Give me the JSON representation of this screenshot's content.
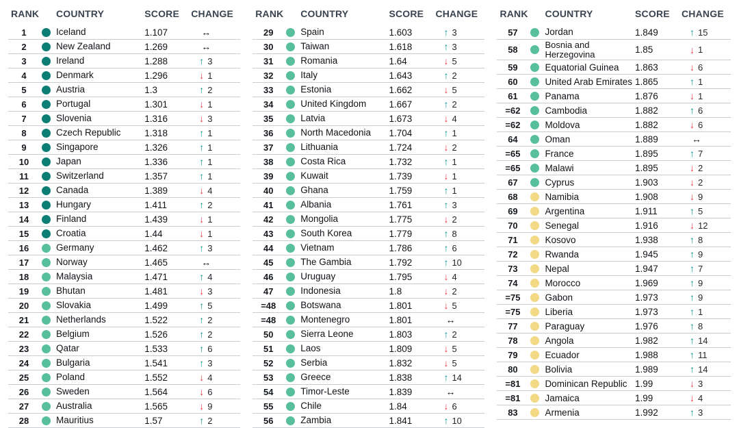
{
  "chart_data": {
    "type": "table",
    "headers": {
      "rank": "RANK",
      "country": "COUNTRY",
      "score": "SCORE",
      "change": "CHANGE"
    },
    "tier_colors": {
      "dark": "#0d7e74",
      "green": "#57bf9c",
      "yellow": "#f2d985"
    },
    "change_colors": {
      "up": "#0a948b",
      "down": "#ee3742",
      "same": "#15181d"
    },
    "change_icons": {
      "up": "↑",
      "down": "↓",
      "same": "↔"
    },
    "sections": [
      {
        "rows": [
          {
            "rank": "1",
            "country": "Iceland",
            "score": "1.107",
            "tier": "dark",
            "change_dir": "same",
            "change": ""
          },
          {
            "rank": "2",
            "country": "New Zealand",
            "score": "1.269",
            "tier": "dark",
            "change_dir": "same",
            "change": ""
          },
          {
            "rank": "3",
            "country": "Ireland",
            "score": "1.288",
            "tier": "dark",
            "change_dir": "up",
            "change": "3"
          },
          {
            "rank": "4",
            "country": "Denmark",
            "score": "1.296",
            "tier": "dark",
            "change_dir": "down",
            "change": "1"
          },
          {
            "rank": "5",
            "country": "Austria",
            "score": "1.3",
            "tier": "dark",
            "change_dir": "up",
            "change": "2"
          },
          {
            "rank": "6",
            "country": "Portugal",
            "score": "1.301",
            "tier": "dark",
            "change_dir": "down",
            "change": "1"
          },
          {
            "rank": "7",
            "country": "Slovenia",
            "score": "1.316",
            "tier": "dark",
            "change_dir": "down",
            "change": "3"
          },
          {
            "rank": "8",
            "country": "Czech Republic",
            "score": "1.318",
            "tier": "dark",
            "change_dir": "up",
            "change": "1"
          },
          {
            "rank": "9",
            "country": "Singapore",
            "score": "1.326",
            "tier": "dark",
            "change_dir": "up",
            "change": "1"
          },
          {
            "rank": "10",
            "country": "Japan",
            "score": "1.336",
            "tier": "dark",
            "change_dir": "up",
            "change": "1"
          },
          {
            "rank": "11",
            "country": "Switzerland",
            "score": "1.357",
            "tier": "dark",
            "change_dir": "up",
            "change": "1"
          },
          {
            "rank": "12",
            "country": "Canada",
            "score": "1.389",
            "tier": "dark",
            "change_dir": "down",
            "change": "4"
          },
          {
            "rank": "13",
            "country": "Hungary",
            "score": "1.411",
            "tier": "dark",
            "change_dir": "up",
            "change": "2"
          },
          {
            "rank": "14",
            "country": "Finland",
            "score": "1.439",
            "tier": "dark",
            "change_dir": "down",
            "change": "1"
          },
          {
            "rank": "15",
            "country": "Croatia",
            "score": "1.44",
            "tier": "dark",
            "change_dir": "down",
            "change": "1"
          },
          {
            "rank": "16",
            "country": "Germany",
            "score": "1.462",
            "tier": "green",
            "change_dir": "up",
            "change": "3"
          },
          {
            "rank": "17",
            "country": "Norway",
            "score": "1.465",
            "tier": "green",
            "change_dir": "same",
            "change": ""
          },
          {
            "rank": "18",
            "country": "Malaysia",
            "score": "1.471",
            "tier": "green",
            "change_dir": "up",
            "change": "4"
          },
          {
            "rank": "19",
            "country": "Bhutan",
            "score": "1.481",
            "tier": "green",
            "change_dir": "down",
            "change": "3"
          },
          {
            "rank": "20",
            "country": "Slovakia",
            "score": "1.499",
            "tier": "green",
            "change_dir": "up",
            "change": "5"
          },
          {
            "rank": "21",
            "country": "Netherlands",
            "score": "1.522",
            "tier": "green",
            "change_dir": "up",
            "change": "2"
          },
          {
            "rank": "22",
            "country": "Belgium",
            "score": "1.526",
            "tier": "green",
            "change_dir": "up",
            "change": "2"
          },
          {
            "rank": "23",
            "country": "Qatar",
            "score": "1.533",
            "tier": "green",
            "change_dir": "up",
            "change": "6"
          },
          {
            "rank": "24",
            "country": "Bulgaria",
            "score": "1.541",
            "tier": "green",
            "change_dir": "up",
            "change": "3"
          },
          {
            "rank": "25",
            "country": "Poland",
            "score": "1.552",
            "tier": "green",
            "change_dir": "down",
            "change": "4"
          },
          {
            "rank": "26",
            "country": "Sweden",
            "score": "1.564",
            "tier": "green",
            "change_dir": "down",
            "change": "6"
          },
          {
            "rank": "27",
            "country": "Australia",
            "score": "1.565",
            "tier": "green",
            "change_dir": "down",
            "change": "9"
          },
          {
            "rank": "28",
            "country": "Mauritius",
            "score": "1.57",
            "tier": "green",
            "change_dir": "up",
            "change": "2"
          }
        ]
      },
      {
        "rows": [
          {
            "rank": "29",
            "country": "Spain",
            "score": "1.603",
            "tier": "green",
            "change_dir": "up",
            "change": "3"
          },
          {
            "rank": "30",
            "country": "Taiwan",
            "score": "1.618",
            "tier": "green",
            "change_dir": "up",
            "change": "3"
          },
          {
            "rank": "31",
            "country": "Romania",
            "score": "1.64",
            "tier": "green",
            "change_dir": "down",
            "change": "5"
          },
          {
            "rank": "32",
            "country": "Italy",
            "score": "1.643",
            "tier": "green",
            "change_dir": "up",
            "change": "2"
          },
          {
            "rank": "33",
            "country": "Estonia",
            "score": "1.662",
            "tier": "green",
            "change_dir": "down",
            "change": "5"
          },
          {
            "rank": "34",
            "country": "United Kingdom",
            "score": "1.667",
            "tier": "green",
            "change_dir": "up",
            "change": "2"
          },
          {
            "rank": "35",
            "country": "Latvia",
            "score": "1.673",
            "tier": "green",
            "change_dir": "down",
            "change": "4"
          },
          {
            "rank": "36",
            "country": "North Macedonia",
            "score": "1.704",
            "tier": "green",
            "change_dir": "up",
            "change": "1"
          },
          {
            "rank": "37",
            "country": "Lithuania",
            "score": "1.724",
            "tier": "green",
            "change_dir": "down",
            "change": "2"
          },
          {
            "rank": "38",
            "country": "Costa Rica",
            "score": "1.732",
            "tier": "green",
            "change_dir": "up",
            "change": "1"
          },
          {
            "rank": "39",
            "country": "Kuwait",
            "score": "1.739",
            "tier": "green",
            "change_dir": "down",
            "change": "1"
          },
          {
            "rank": "40",
            "country": "Ghana",
            "score": "1.759",
            "tier": "green",
            "change_dir": "up",
            "change": "1"
          },
          {
            "rank": "41",
            "country": "Albania",
            "score": "1.761",
            "tier": "green",
            "change_dir": "up",
            "change": "3"
          },
          {
            "rank": "42",
            "country": "Mongolia",
            "score": "1.775",
            "tier": "green",
            "change_dir": "down",
            "change": "2"
          },
          {
            "rank": "43",
            "country": "South Korea",
            "score": "1.779",
            "tier": "green",
            "change_dir": "up",
            "change": "8"
          },
          {
            "rank": "44",
            "country": "Vietnam",
            "score": "1.786",
            "tier": "green",
            "change_dir": "up",
            "change": "6"
          },
          {
            "rank": "45",
            "country": "The Gambia",
            "score": "1.792",
            "tier": "green",
            "change_dir": "up",
            "change": "10"
          },
          {
            "rank": "46",
            "country": "Uruguay",
            "score": "1.795",
            "tier": "green",
            "change_dir": "down",
            "change": "4"
          },
          {
            "rank": "47",
            "country": "Indonesia",
            "score": "1.8",
            "tier": "green",
            "change_dir": "down",
            "change": "2"
          },
          {
            "rank": "=48",
            "country": "Botswana",
            "score": "1.801",
            "tier": "green",
            "change_dir": "down",
            "change": "5"
          },
          {
            "rank": "=48",
            "country": "Montenegro",
            "score": "1.801",
            "tier": "green",
            "change_dir": "same",
            "change": ""
          },
          {
            "rank": "50",
            "country": "Sierra Leone",
            "score": "1.803",
            "tier": "green",
            "change_dir": "up",
            "change": "2"
          },
          {
            "rank": "51",
            "country": "Laos",
            "score": "1.809",
            "tier": "green",
            "change_dir": "down",
            "change": "5"
          },
          {
            "rank": "52",
            "country": "Serbia",
            "score": "1.832",
            "tier": "green",
            "change_dir": "down",
            "change": "5"
          },
          {
            "rank": "53",
            "country": "Greece",
            "score": "1.838",
            "tier": "green",
            "change_dir": "up",
            "change": "14"
          },
          {
            "rank": "54",
            "country": "Timor-Leste",
            "score": "1.839",
            "tier": "green",
            "change_dir": "same",
            "change": ""
          },
          {
            "rank": "55",
            "country": "Chile",
            "score": "1.84",
            "tier": "green",
            "change_dir": "down",
            "change": "6"
          },
          {
            "rank": "56",
            "country": "Zambia",
            "score": "1.841",
            "tier": "green",
            "change_dir": "up",
            "change": "10"
          }
        ]
      },
      {
        "rows": [
          {
            "rank": "57",
            "country": "Jordan",
            "score": "1.849",
            "tier": "green",
            "change_dir": "up",
            "change": "15"
          },
          {
            "rank": "58",
            "country": "Bosnia and Herzegovina",
            "score": "1.85",
            "tier": "green",
            "change_dir": "down",
            "change": "1",
            "wrap": true
          },
          {
            "rank": "59",
            "country": "Equatorial Guinea",
            "score": "1.863",
            "tier": "green",
            "change_dir": "down",
            "change": "6"
          },
          {
            "rank": "60",
            "country": "United Arab Emirates",
            "score": "1.865",
            "tier": "green",
            "change_dir": "up",
            "change": "1"
          },
          {
            "rank": "61",
            "country": "Panama",
            "score": "1.876",
            "tier": "green",
            "change_dir": "down",
            "change": "1"
          },
          {
            "rank": "=62",
            "country": "Cambodia",
            "score": "1.882",
            "tier": "green",
            "change_dir": "up",
            "change": "6"
          },
          {
            "rank": "=62",
            "country": "Moldova",
            "score": "1.882",
            "tier": "green",
            "change_dir": "down",
            "change": "6"
          },
          {
            "rank": "64",
            "country": "Oman",
            "score": "1.889",
            "tier": "green",
            "change_dir": "same",
            "change": ""
          },
          {
            "rank": "=65",
            "country": "France",
            "score": "1.895",
            "tier": "green",
            "change_dir": "up",
            "change": "7"
          },
          {
            "rank": "=65",
            "country": "Malawi",
            "score": "1.895",
            "tier": "green",
            "change_dir": "down",
            "change": "2"
          },
          {
            "rank": "67",
            "country": "Cyprus",
            "score": "1.903",
            "tier": "green",
            "change_dir": "down",
            "change": "2"
          },
          {
            "rank": "68",
            "country": "Namibia",
            "score": "1.908",
            "tier": "yellow",
            "change_dir": "down",
            "change": "9"
          },
          {
            "rank": "69",
            "country": "Argentina",
            "score": "1.911",
            "tier": "yellow",
            "change_dir": "up",
            "change": "5"
          },
          {
            "rank": "70",
            "country": "Senegal",
            "score": "1.916",
            "tier": "yellow",
            "change_dir": "down",
            "change": "12"
          },
          {
            "rank": "71",
            "country": "Kosovo",
            "score": "1.938",
            "tier": "yellow",
            "change_dir": "up",
            "change": "8"
          },
          {
            "rank": "72",
            "country": "Rwanda",
            "score": "1.945",
            "tier": "yellow",
            "change_dir": "up",
            "change": "9"
          },
          {
            "rank": "73",
            "country": "Nepal",
            "score": "1.947",
            "tier": "yellow",
            "change_dir": "up",
            "change": "7"
          },
          {
            "rank": "74",
            "country": "Morocco",
            "score": "1.969",
            "tier": "yellow",
            "change_dir": "up",
            "change": "9"
          },
          {
            "rank": "=75",
            "country": "Gabon",
            "score": "1.973",
            "tier": "yellow",
            "change_dir": "up",
            "change": "9"
          },
          {
            "rank": "=75",
            "country": "Liberia",
            "score": "1.973",
            "tier": "yellow",
            "change_dir": "up",
            "change": "1"
          },
          {
            "rank": "77",
            "country": "Paraguay",
            "score": "1.976",
            "tier": "yellow",
            "change_dir": "up",
            "change": "8"
          },
          {
            "rank": "78",
            "country": "Angola",
            "score": "1.982",
            "tier": "yellow",
            "change_dir": "up",
            "change": "14"
          },
          {
            "rank": "79",
            "country": "Ecuador",
            "score": "1.988",
            "tier": "yellow",
            "change_dir": "up",
            "change": "11"
          },
          {
            "rank": "80",
            "country": "Bolivia",
            "score": "1.989",
            "tier": "yellow",
            "change_dir": "up",
            "change": "14"
          },
          {
            "rank": "=81",
            "country": "Dominican Republic",
            "score": "1.99",
            "tier": "yellow",
            "change_dir": "down",
            "change": "3"
          },
          {
            "rank": "=81",
            "country": "Jamaica",
            "score": "1.99",
            "tier": "yellow",
            "change_dir": "down",
            "change": "4"
          },
          {
            "rank": "83",
            "country": "Armenia",
            "score": "1.992",
            "tier": "yellow",
            "change_dir": "up",
            "change": "3"
          }
        ]
      }
    ]
  }
}
